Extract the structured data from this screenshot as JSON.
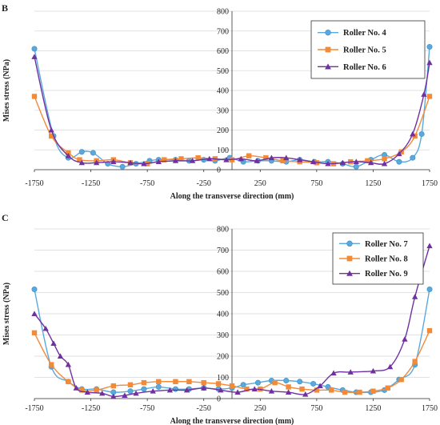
{
  "panels_meta": {
    "colors": {
      "series_1": "#5aa9dc",
      "series_2": "#f28a37",
      "series_3": "#7030a0",
      "grid": "#d9d9d9",
      "axis": "#333333"
    },
    "markers": [
      "circle",
      "square",
      "triangle"
    ]
  },
  "chart_data": [
    {
      "type": "line",
      "panel_label": "B",
      "xlabel": "Along the transverse direction (mm)",
      "ylabel": "Mises stress (NPa)",
      "xlim": [
        -1750,
        1750
      ],
      "ylim": [
        0,
        800
      ],
      "xticks": [
        "-1750",
        "-1250",
        "-750",
        "-250",
        "250",
        "750",
        "1250",
        "1750"
      ],
      "yticks": [
        "0",
        "100",
        "200",
        "300",
        "400",
        "500",
        "600",
        "700",
        "800"
      ],
      "grid": "horizontal",
      "legend": "top-right",
      "series": [
        {
          "name": "Roller No. 4",
          "marker": "circle",
          "x": [
            -1750,
            -1580,
            -1450,
            -1330,
            -1230,
            -1100,
            -970,
            -850,
            -730,
            -650,
            -500,
            -380,
            -250,
            -150,
            -20,
            100,
            230,
            350,
            480,
            600,
            730,
            850,
            980,
            1100,
            1230,
            1350,
            1480,
            1600,
            1680,
            1750
          ],
          "y": [
            610,
            170,
            60,
            90,
            85,
            30,
            15,
            30,
            45,
            50,
            50,
            45,
            50,
            45,
            60,
            40,
            45,
            45,
            40,
            50,
            40,
            40,
            30,
            15,
            50,
            75,
            40,
            60,
            180,
            620
          ]
        },
        {
          "name": "Roller No. 5",
          "marker": "square",
          "x": [
            -1750,
            -1600,
            -1450,
            -1350,
            -1200,
            -1050,
            -900,
            -750,
            -600,
            -450,
            -300,
            -150,
            0,
            150,
            300,
            450,
            600,
            750,
            900,
            1050,
            1200,
            1350,
            1500,
            1620,
            1750
          ],
          "y": [
            370,
            170,
            85,
            50,
            45,
            50,
            35,
            30,
            50,
            55,
            60,
            55,
            50,
            70,
            60,
            45,
            40,
            35,
            30,
            40,
            45,
            55,
            90,
            170,
            370
          ]
        },
        {
          "name": "Roller No. 6",
          "marker": "triangle",
          "x": [
            -1750,
            -1600,
            -1450,
            -1330,
            -1200,
            -1050,
            -900,
            -780,
            -650,
            -500,
            -350,
            -200,
            -50,
            80,
            220,
            350,
            480,
            600,
            720,
            850,
            980,
            1100,
            1230,
            1350,
            1480,
            1600,
            1700,
            1750
          ],
          "y": [
            570,
            200,
            70,
            35,
            35,
            40,
            35,
            30,
            40,
            45,
            45,
            55,
            50,
            55,
            45,
            60,
            60,
            50,
            40,
            30,
            35,
            40,
            35,
            30,
            80,
            180,
            380,
            540
          ]
        }
      ]
    },
    {
      "type": "line",
      "panel_label": "C",
      "xlabel": "Along the transverse direction (mm)",
      "ylabel": "Mises stress (NPa)",
      "xlim": [
        -1750,
        1750
      ],
      "ylim": [
        0,
        800
      ],
      "xticks": [
        "-1750",
        "-1250",
        "-750",
        "-250",
        "250",
        "750",
        "1250",
        "1750"
      ],
      "yticks": [
        "0",
        "100",
        "200",
        "300",
        "400",
        "500",
        "600",
        "700",
        "800"
      ],
      "grid": "horizontal",
      "legend": "top-right",
      "series": [
        {
          "name": "Roller No. 7",
          "marker": "circle",
          "x": [
            -1750,
            -1600,
            -1450,
            -1330,
            -1200,
            -1050,
            -900,
            -780,
            -650,
            -500,
            -380,
            -250,
            -120,
            0,
            100,
            230,
            350,
            480,
            600,
            720,
            850,
            980,
            1100,
            1230,
            1350,
            1480,
            1620,
            1750
          ],
          "y": [
            515,
            150,
            80,
            45,
            45,
            30,
            35,
            45,
            55,
            45,
            45,
            50,
            45,
            50,
            65,
            75,
            85,
            85,
            80,
            70,
            55,
            40,
            30,
            30,
            40,
            90,
            160,
            515
          ]
        },
        {
          "name": "Roller No. 8",
          "marker": "square",
          "x": [
            -1750,
            -1600,
            -1450,
            -1330,
            -1200,
            -1050,
            -900,
            -780,
            -650,
            -500,
            -380,
            -250,
            -120,
            0,
            130,
            250,
            380,
            500,
            620,
            750,
            880,
            1000,
            1130,
            1250,
            1380,
            1500,
            1620,
            1750
          ],
          "y": [
            310,
            160,
            80,
            40,
            40,
            60,
            65,
            75,
            80,
            80,
            80,
            75,
            70,
            60,
            45,
            45,
            75,
            55,
            45,
            40,
            40,
            30,
            30,
            35,
            50,
            90,
            175,
            320
          ]
        },
        {
          "name": "Roller No. 9",
          "marker": "triangle",
          "x": [
            -1750,
            -1650,
            -1580,
            -1520,
            -1450,
            -1380,
            -1280,
            -1150,
            -1050,
            -950,
            -850,
            -700,
            -550,
            -400,
            -250,
            -100,
            50,
            200,
            350,
            500,
            650,
            780,
            900,
            1050,
            1250,
            1400,
            1530,
            1620,
            1750
          ],
          "y": [
            400,
            330,
            260,
            200,
            160,
            50,
            30,
            25,
            10,
            15,
            25,
            35,
            40,
            40,
            50,
            40,
            30,
            45,
            35,
            30,
            20,
            60,
            120,
            125,
            130,
            150,
            280,
            480,
            720
          ]
        }
      ]
    }
  ]
}
